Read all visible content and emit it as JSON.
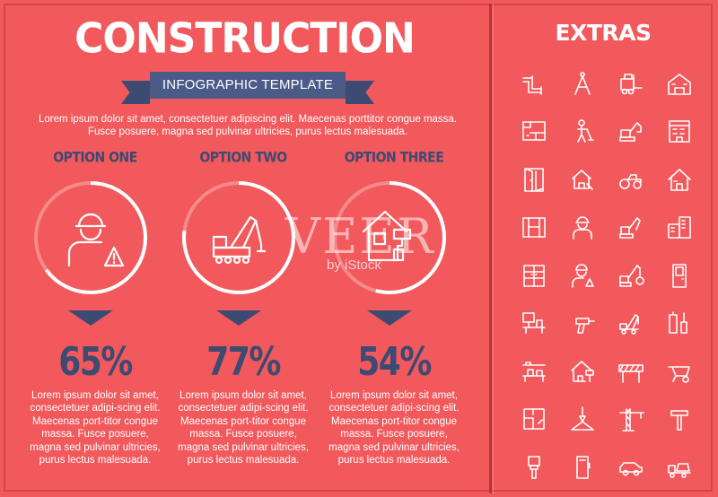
{
  "title": "CONSTRUCTION",
  "subtitle": "INFOGRAPHIC TEMPLATE",
  "intro": "Lorem ipsum dolor sit amet, consectetuer adipiscing elit. Maecenas porttitor congue massa. Fusce posuere, magna sed pulvinar ultricies, purus lectus malesuada.",
  "colors": {
    "background": "#f2595c",
    "accent": "#3d4a72",
    "ribbon": "#4b5b87",
    "text": "#ffffff"
  },
  "options": [
    {
      "title": "OPTION ONE",
      "percent": 65,
      "percent_label": "65%",
      "icon": "construction-worker-icon",
      "description": "Lorem ipsum dolor sit amet, consectetuer adipi-scing elit. Maecenas port-titor congue massa. Fusce posuere, magna sed pulvinar ultricies, purus lectus malesuada."
    },
    {
      "title": "OPTION TWO",
      "percent": 77,
      "percent_label": "77%",
      "icon": "crane-truck-icon",
      "description": "Lorem ipsum dolor sit amet, consectetuer adipi-scing elit. Maecenas port-titor congue massa. Fusce posuere, magna sed pulvinar ultricies, purus lectus malesuada."
    },
    {
      "title": "OPTION THREE",
      "percent": 54,
      "percent_label": "54%",
      "icon": "house-renovation-icon",
      "description": "Lorem ipsum dolor sit amet, consectetuer adipi-scing elit. Maecenas port-titor congue massa. Fusce posuere, magna sed pulvinar ultricies, purus lectus malesuada."
    }
  ],
  "extras_title": "EXTRAS",
  "extras_icons": [
    "pipe-icon",
    "compass-icon",
    "forklift-icon",
    "school-building-icon",
    "blueprint-icon",
    "worker-digging-icon",
    "excavator-icon",
    "apartment-building-icon",
    "door-icon",
    "house-plan-icon",
    "road-roller-icon",
    "house-icon",
    "window-icon",
    "worker-helmet-icon",
    "excavator-small-icon",
    "city-buildings-icon",
    "cabinet-icon",
    "worker-warning-icon",
    "wrecking-ball-icon",
    "door-panel-icon",
    "interior-icon",
    "drill-icon",
    "crane-truck-icon",
    "tools-icon",
    "shelf-icon",
    "house-paint-icon",
    "road-barrier-icon",
    "wheelbarrow-icon",
    "floor-plan-icon",
    "hook-icon",
    "tower-crane-icon",
    "hammer-icon",
    "paint-brush-icon",
    "saw-icon",
    "car-icon",
    "concrete-mixer-icon"
  ],
  "watermark": {
    "brand": "VEER",
    "sub": "by iStock"
  }
}
